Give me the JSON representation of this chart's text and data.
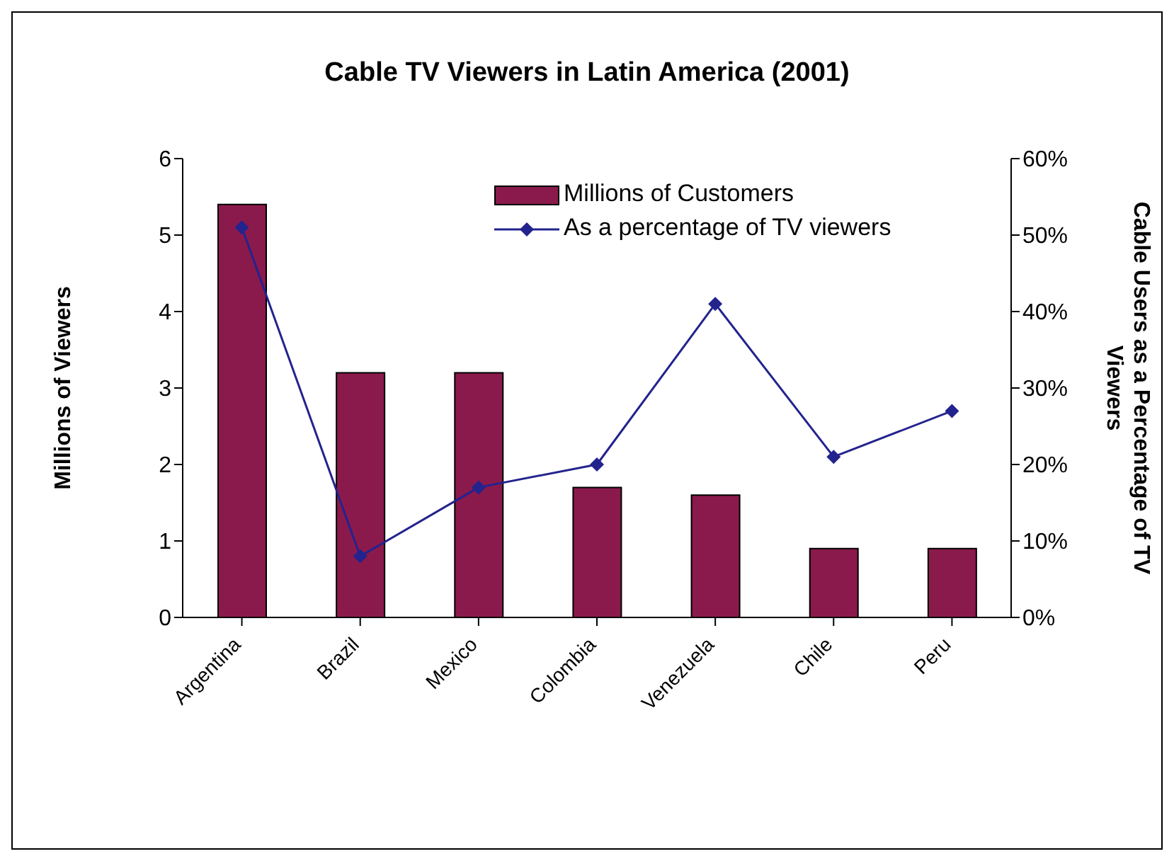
{
  "chart_data": {
    "type": "bar",
    "title": "Cable TV Viewers in Latin America (2001)",
    "ylabel": "Millions of Viewers",
    "y2label": "Cable Users as a Percentage of TV Viewers",
    "categories": [
      "Argentina",
      "Brazil",
      "Mexico",
      "Colombia",
      "Venezuela",
      "Chile",
      "Peru"
    ],
    "series": [
      {
        "name": "Millions of Customers",
        "color": "#8b1a4c",
        "values": [
          5.4,
          3.2,
          3.2,
          1.7,
          1.6,
          0.9,
          0.9
        ]
      },
      {
        "name": "As a percentage of TV viewers",
        "type": "line",
        "axis": "y2",
        "color": "#23238e",
        "marker": "diamond",
        "values": [
          51,
          8,
          17,
          20,
          41,
          21,
          27
        ]
      }
    ],
    "ylim": [
      0,
      6
    ],
    "yticks": [
      0,
      1,
      2,
      3,
      4,
      5,
      6
    ],
    "y2lim": [
      0,
      60
    ],
    "y2ticks": [
      {
        "value": 0,
        "label": "0%"
      },
      {
        "value": 10,
        "label": "10%"
      },
      {
        "value": 20,
        "label": "20%"
      },
      {
        "value": 30,
        "label": "30%"
      },
      {
        "value": 40,
        "label": "40%"
      },
      {
        "value": 50,
        "label": "50%"
      },
      {
        "value": 60,
        "label": "60%"
      }
    ],
    "grid": false,
    "legend": "top right"
  }
}
